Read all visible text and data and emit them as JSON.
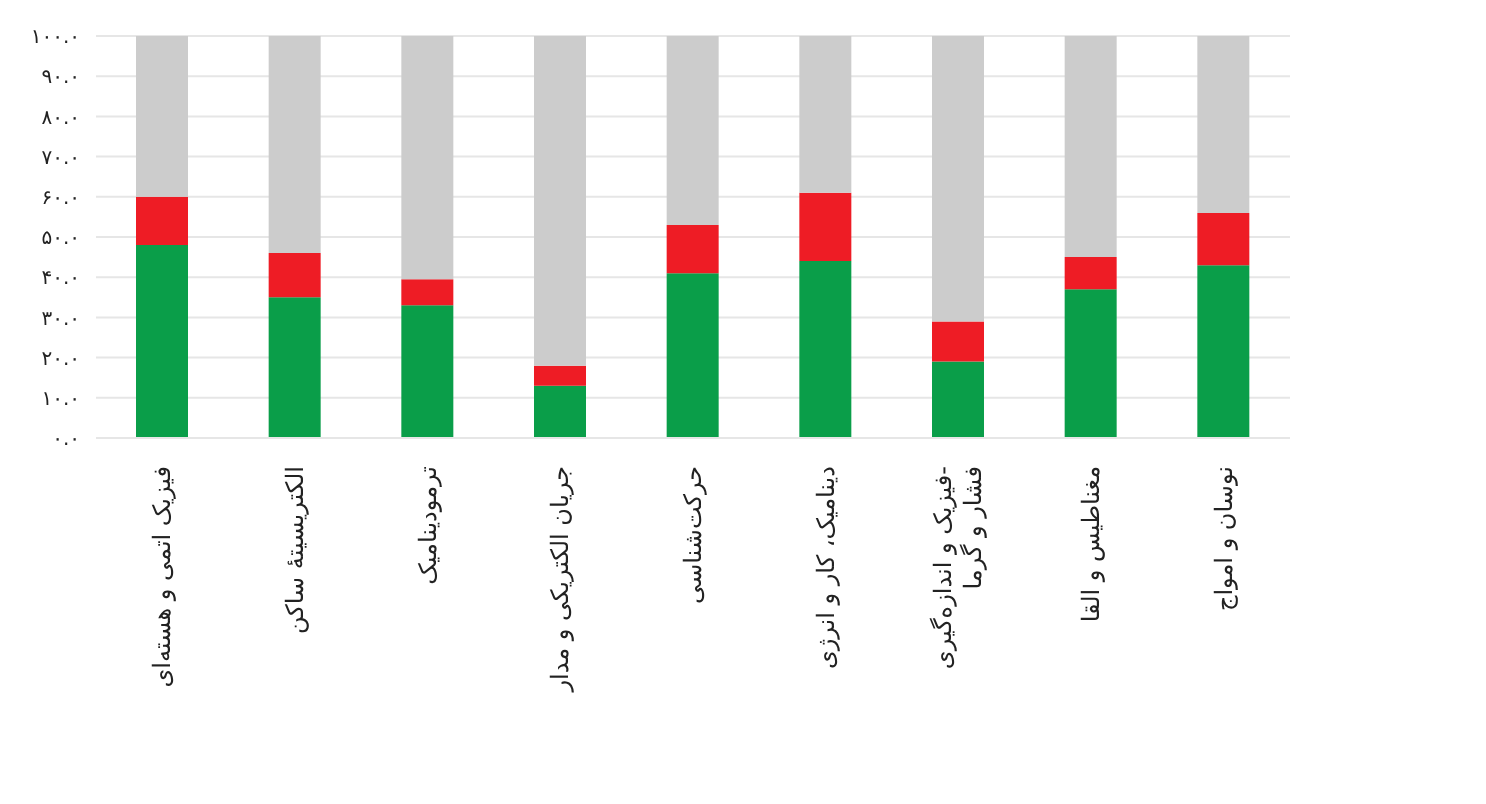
{
  "chart_data": {
    "type": "bar",
    "stacked": true,
    "grid": "y",
    "categories": [
      "فیزیک اتمی و هسته‌ای",
      "الکتریسیتهٔ ساکن",
      "ترمودینامیک",
      "جریان الکتریکی و مدار",
      "حرکت‌شناسی",
      "دینامیک، کار و انرژی",
      "فیزیک و اندازه‌گیری-\nفشار و گرما",
      "مغناطیس و القا",
      "نوسان و امواج"
    ],
    "series": [
      {
        "color": "#0a9e49",
        "values": [
          48,
          35,
          33,
          13,
          41,
          44,
          19,
          37,
          43
        ]
      },
      {
        "color": "#ee1c25",
        "values": [
          12,
          11,
          6.5,
          5,
          12,
          17,
          10,
          8,
          13
        ]
      },
      {
        "color": "#cccccc",
        "values": [
          40,
          54,
          60.5,
          82,
          47,
          39,
          71,
          55,
          44
        ]
      }
    ],
    "ylim": [
      0,
      100
    ],
    "yticks": [
      {
        "value": 0,
        "label": "۰.۰"
      },
      {
        "value": 10,
        "label": "۱۰.۰"
      },
      {
        "value": 20,
        "label": "۲۰.۰"
      },
      {
        "value": 30,
        "label": "۳۰.۰"
      },
      {
        "value": 40,
        "label": "۴۰.۰"
      },
      {
        "value": 50,
        "label": "۵۰.۰"
      },
      {
        "value": 60,
        "label": "۶۰.۰"
      },
      {
        "value": 70,
        "label": "۷۰.۰"
      },
      {
        "value": 80,
        "label": "۸۰.۰"
      },
      {
        "value": 90,
        "label": "۹۰.۰"
      },
      {
        "value": 100,
        "label": "۱۰۰.۰"
      }
    ]
  }
}
